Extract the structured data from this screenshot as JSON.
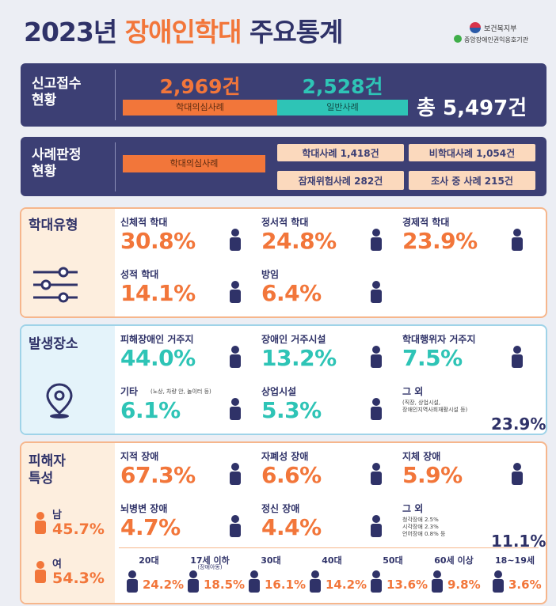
{
  "header": {
    "title_year": "2023년",
    "title_highlight": "장애인학대",
    "title_rest": "주요통계",
    "logos": [
      "보건복지부",
      "중앙장애인권익옹호기관"
    ]
  },
  "reports": {
    "label": [
      "신고접수",
      "현황"
    ],
    "suspected_count": "2,969건",
    "suspected_label": "학대의심사례",
    "general_count": "2,528건",
    "general_label": "일반사례",
    "total": "총 5,497건"
  },
  "judgement": {
    "label": [
      "사례판정",
      "현황"
    ],
    "bar_label": "학대의심사례",
    "boxes": [
      "학대사례 1,418건",
      "비학대사례 1,054건",
      "잠재위험사례 282건",
      "조사 중 사례 215건"
    ]
  },
  "abuse_types": {
    "title": "학대유형",
    "items": [
      {
        "label": "신체적 학대",
        "value": "30.8%"
      },
      {
        "label": "정서적 학대",
        "value": "24.8%"
      },
      {
        "label": "경제적 학대",
        "value": "23.9%"
      },
      {
        "label": "성적 학대",
        "value": "14.1%"
      },
      {
        "label": "방임",
        "value": "6.4%"
      }
    ]
  },
  "locations": {
    "title": "발생장소",
    "items": [
      {
        "label": "피해장애인 거주지",
        "value": "44.0%"
      },
      {
        "label": "장애인 거주시설",
        "value": "13.2%"
      },
      {
        "label": "학대행위자 거주지",
        "value": "7.5%"
      },
      {
        "label": "기타",
        "note": "(노상, 차량 안, 놀이터 등)",
        "value": "6.1%"
      },
      {
        "label": "상업시설",
        "value": "5.3%"
      },
      {
        "label": "그 외",
        "notes": [
          "(직장, 상업시설,",
          "장애인지역사회재활시설 등)"
        ],
        "value": "23.9%"
      }
    ]
  },
  "victims": {
    "title": [
      "피해자",
      "특성"
    ],
    "gender": [
      {
        "label": "남",
        "value": "45.7%"
      },
      {
        "label": "여",
        "value": "54.3%"
      }
    ],
    "disability": [
      {
        "label": "지적 장애",
        "value": "67.3%"
      },
      {
        "label": "자폐성 장애",
        "value": "6.6%"
      },
      {
        "label": "지체 장애",
        "value": "5.9%"
      },
      {
        "label": "뇌병변 장애",
        "value": "4.7%"
      },
      {
        "label": "정신 장애",
        "value": "4.4%"
      },
      {
        "label": "그 외",
        "notes": [
          "청각장애 2.5%",
          "시각장애 2.3%",
          "언어장애 0.8% 등"
        ],
        "value": "11.1%"
      }
    ],
    "ages": [
      {
        "label": "20대",
        "value": "24.2%"
      },
      {
        "label": "17세 이하",
        "note": "(장애아동)",
        "value": "18.5%"
      },
      {
        "label": "30대",
        "value": "16.1%"
      },
      {
        "label": "40대",
        "value": "14.2%"
      },
      {
        "label": "50대",
        "value": "13.6%"
      },
      {
        "label": "60세 이상",
        "value": "9.8%"
      },
      {
        "label": "18~19세",
        "value": "3.6%"
      }
    ]
  }
}
